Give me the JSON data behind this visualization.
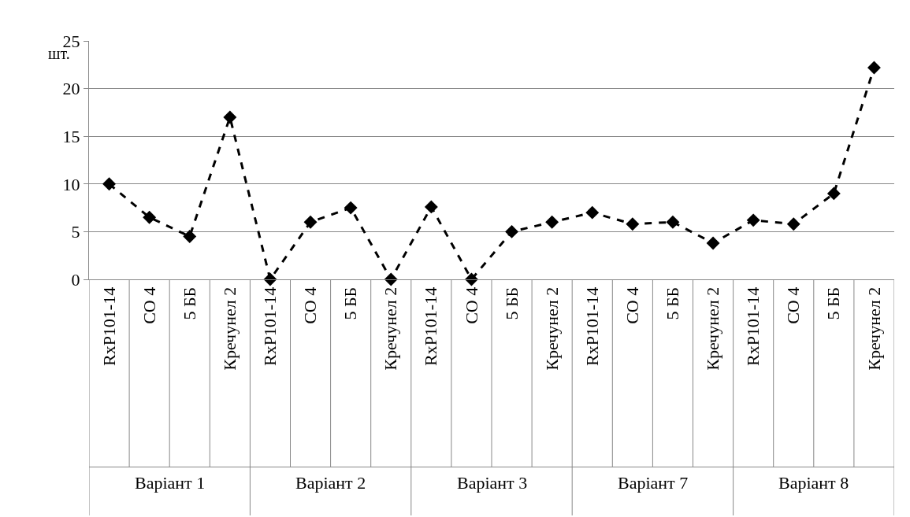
{
  "chart_data": {
    "type": "line",
    "ylabel": "шт.",
    "categories": [
      "RxP101-14",
      "CO 4",
      "5 ББ",
      "Кречунел 2",
      "RxP101-14",
      "CO 4",
      "5 ББ",
      "Кречунел 2",
      "RxP101-14",
      "CO 4",
      "5 ББ",
      "Кречунел 2",
      "RxP101-14",
      "CO 4",
      "5 ББ",
      "Кречунел 2",
      "RxP101-14",
      "CO 4",
      "5 ББ",
      "Кречунел 2"
    ],
    "series": [
      {
        "color": "#000000",
        "values": [
          10,
          6.5,
          4.5,
          17,
          0,
          6,
          7.5,
          0,
          7.6,
          0,
          5,
          6,
          7,
          5.8,
          6,
          3.8,
          6.2,
          5.8,
          9,
          22.2
        ]
      }
    ],
    "annotations": [
      "Варіант 1",
      "Варіант 2",
      "Варіант 3",
      "Варіант 7",
      "Варіант 8"
    ],
    "ylim": [
      0,
      25
    ],
    "yticks": [
      0,
      5,
      10,
      15,
      20,
      25
    ],
    "grid": "y",
    "legend": false,
    "marker": "diamond",
    "line_style": "dashed"
  }
}
